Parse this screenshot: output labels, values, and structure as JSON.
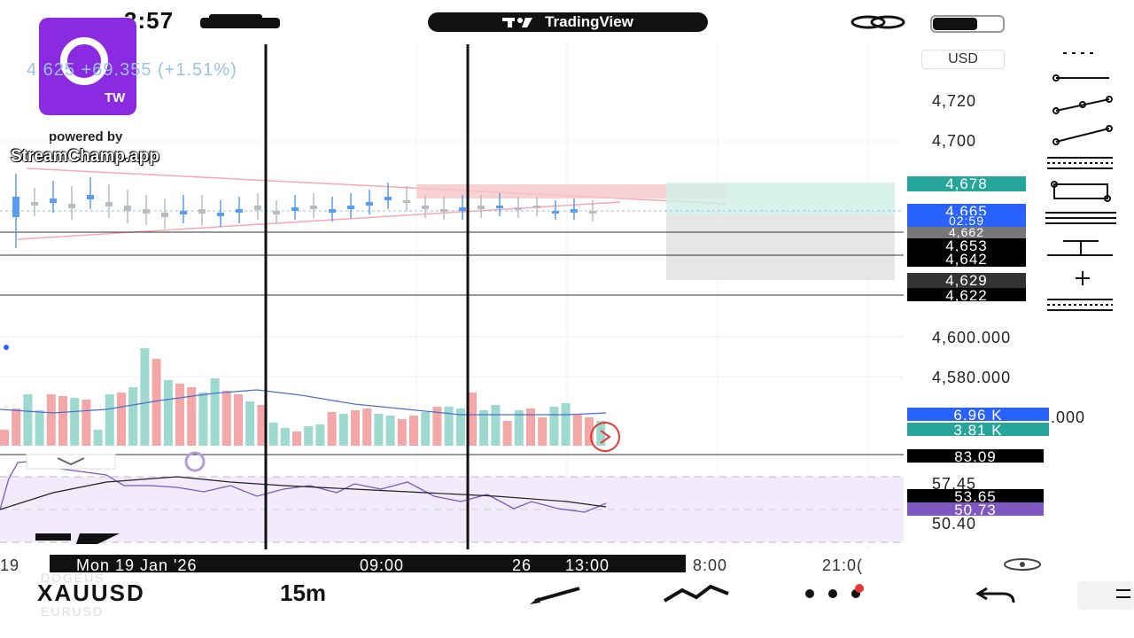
{
  "status": {
    "time": "3:57"
  },
  "top_pill": {
    "label": "TradingView"
  },
  "overlay": {
    "tw_badge": "TW",
    "powered_by": "powered by",
    "brand": "StreamChamp.app"
  },
  "header": {
    "price_change": "4 625  +69.355 (+1.51%)",
    "currency": "USD"
  },
  "price_axis": {
    "labels": [
      "4,720",
      "4,700",
      "4,600.000",
      "4,580.000",
      ".000"
    ]
  },
  "price_tags": [
    {
      "value": "4,678",
      "color": "#26a69a"
    },
    {
      "value": "4,665",
      "color": "#2962ff"
    },
    {
      "value": "02:59",
      "color": "#2962ff"
    },
    {
      "value": "4,662",
      "color": "#777777"
    },
    {
      "value": "4,653",
      "color": "#000000"
    },
    {
      "value": "4,642",
      "color": "#000000"
    },
    {
      "value": "4,629",
      "color": "#333333"
    },
    {
      "value": "4,622",
      "color": "#000000"
    }
  ],
  "volume_tags": [
    {
      "value": "6.96 K",
      "color": "#2962ff"
    },
    {
      "value": "3.81 K",
      "color": "#26a69a"
    }
  ],
  "rsi_axis": {
    "labels": [
      "83.09",
      "57.45",
      "53.65",
      "50.73",
      "50.40"
    ]
  },
  "time_axis": {
    "left_cut": "19",
    "date_label": "Mon 19 Jan '26",
    "t1": "09:00",
    "t2": "26",
    "t3": "13:00",
    "t4": "8:00",
    "t5": "21:0("
  },
  "bottom_bar": {
    "symbol": "XAUUSD",
    "timeframe": "15m",
    "ghost_above": "DOGEUS",
    "ghost_below": "EURUSD"
  },
  "colors": {
    "up": "#5b9cf0",
    "down": "#bbbbbb",
    "vol_up": "#9ed9cf",
    "vol_down": "#f4a7a7",
    "rsi_fill": "#f1ebfb",
    "rsi_line": "#7e57c2",
    "accent": "#2962ff",
    "brand": "#8a2be2"
  }
}
